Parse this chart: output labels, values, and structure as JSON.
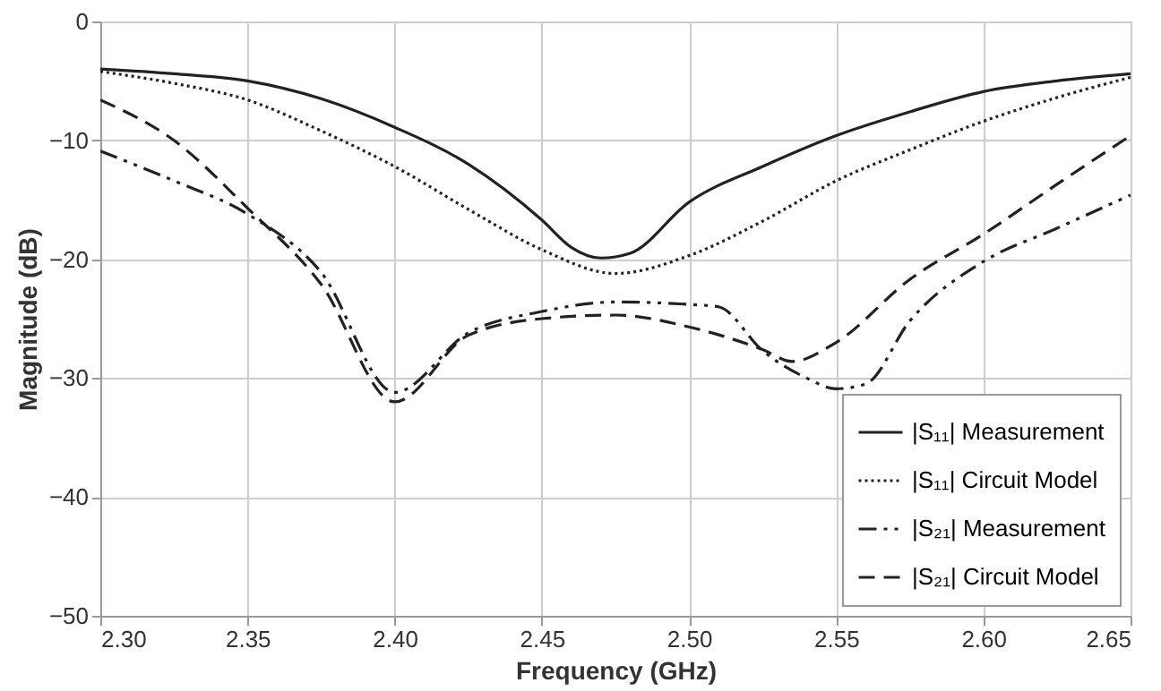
{
  "chart_data": {
    "type": "line",
    "xlabel": "Frequency (GHz)",
    "ylabel": "Magnitude (dB)",
    "xlim": [
      2.3,
      2.65
    ],
    "xticks": [
      {
        "value": 2.3,
        "label": "2.30"
      },
      {
        "value": 2.35,
        "label": "2.35"
      },
      {
        "value": 2.4,
        "label": "2.40"
      },
      {
        "value": 2.45,
        "label": "2.45"
      },
      {
        "value": 2.5,
        "label": "2.50"
      },
      {
        "value": 2.55,
        "label": "2.55"
      },
      {
        "value": 2.6,
        "label": "2.60"
      },
      {
        "value": 2.65,
        "label": "2.65"
      }
    ],
    "ylim": [
      -50,
      0
    ],
    "yticks": [
      -50,
      -40,
      -30,
      -20,
      -10,
      0
    ],
    "grid": true,
    "legend": "bottom right",
    "marker": "none",
    "series": [
      {
        "name": "|S₁₁| Measurement",
        "color": "#222222",
        "line_style": "solid",
        "x": [
          2.3,
          2.325,
          2.35,
          2.375,
          2.4,
          2.425,
          2.45,
          2.46,
          2.47,
          2.48,
          2.5,
          2.525,
          2.55,
          2.575,
          2.6,
          2.625,
          2.65
        ],
        "values": [
          -4.0,
          -4.4,
          -5.0,
          -6.5,
          -8.9,
          -12.0,
          -16.7,
          -19.0,
          -19.9,
          -19.5,
          -15.2,
          -12.2,
          -9.6,
          -7.6,
          -5.9,
          -5.0,
          -4.4
        ]
      },
      {
        "name": "|S₁₁| Circuit Model",
        "color": "#222222",
        "line_style": "dotted",
        "x": [
          2.3,
          2.325,
          2.35,
          2.375,
          2.4,
          2.425,
          2.45,
          2.475,
          2.5,
          2.525,
          2.55,
          2.575,
          2.6,
          2.625,
          2.65
        ],
        "values": [
          -4.2,
          -5.2,
          -6.6,
          -9.2,
          -12.2,
          -15.8,
          -19.2,
          -21.2,
          -19.7,
          -16.8,
          -13.4,
          -10.8,
          -8.4,
          -6.4,
          -4.7
        ]
      },
      {
        "name": "|S₂₁| Measurement",
        "color": "#222222",
        "line_style": "dashdot",
        "x": [
          2.3,
          2.325,
          2.35,
          2.375,
          2.4,
          2.425,
          2.45,
          2.475,
          2.5,
          2.51,
          2.525,
          2.54,
          2.55,
          2.56,
          2.575,
          2.6,
          2.625,
          2.65
        ],
        "values": [
          -10.9,
          -13.4,
          -16.2,
          -21.1,
          -31.2,
          -26.2,
          -24.4,
          -23.6,
          -23.8,
          -24.0,
          -27.7,
          -30.0,
          -30.9,
          -30.5,
          -25.2,
          -20.2,
          -17.4,
          -14.6
        ]
      },
      {
        "name": "|S₂₁| Circuit Model",
        "color": "#222222",
        "line_style": "dashed",
        "x": [
          2.3,
          2.325,
          2.35,
          2.375,
          2.4,
          2.425,
          2.45,
          2.475,
          2.5,
          2.525,
          2.535,
          2.55,
          2.575,
          2.6,
          2.625,
          2.65
        ],
        "values": [
          -6.6,
          -10.0,
          -15.7,
          -22.1,
          -32.0,
          -26.4,
          -25.0,
          -24.7,
          -25.7,
          -27.6,
          -28.6,
          -27.0,
          -21.7,
          -17.9,
          -13.7,
          -9.6
        ]
      }
    ]
  }
}
